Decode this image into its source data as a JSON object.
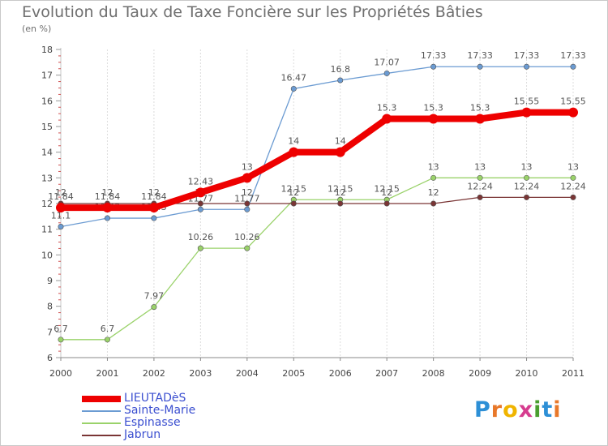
{
  "title": "Evolution du Taux de Taxe Foncière sur les Propriétés Bâties",
  "unit": "(en %)",
  "chart_data": {
    "type": "line",
    "title": "Evolution du Taux de Taxe Foncière sur les Propriétés Bâties",
    "ylabel": "(en %)",
    "xlabel": "",
    "x": [
      "2000",
      "2001",
      "2002",
      "2003",
      "2004",
      "2005",
      "2006",
      "2007",
      "2008",
      "2009",
      "2010",
      "2011"
    ],
    "ylim": [
      6,
      18
    ],
    "yticks": [
      6,
      7,
      8,
      9,
      10,
      11,
      12,
      13,
      14,
      15,
      16,
      17,
      18
    ],
    "grid": "vertical",
    "series": [
      {
        "name": "Sainte-Marie",
        "color": "#6b9bd2",
        "values": [
          11.1,
          11.43,
          11.43,
          11.77,
          11.77,
          16.47,
          16.8,
          17.07,
          17.33,
          17.33,
          17.33,
          17.33
        ],
        "labels": [
          "11.1",
          "11.43",
          "11.43",
          "11.77",
          "11.77",
          "16.47",
          "16.8",
          "17.07",
          "17.33",
          "17.33",
          "17.33",
          "17.33"
        ]
      },
      {
        "name": "Espinasse",
        "color": "#9ad26a",
        "values": [
          6.7,
          6.7,
          7.97,
          10.26,
          10.26,
          12.15,
          12.15,
          12.15,
          13,
          13,
          13,
          13
        ],
        "labels": [
          "6.7",
          "6.7",
          "7.97",
          "10.26",
          "10.26",
          "12.15",
          "12.15",
          "12.15",
          "13",
          "13",
          "13",
          "13"
        ]
      },
      {
        "name": "Jabrun",
        "color": "#7a3535",
        "values": [
          12,
          12,
          12,
          12,
          12,
          12,
          12,
          12,
          12,
          12.24,
          12.24,
          12.24
        ],
        "labels": [
          "12",
          "12",
          "12",
          "12",
          "12",
          "12",
          "12",
          "12",
          "12",
          "12.24",
          "12.24",
          "12.24"
        ]
      },
      {
        "name": "LIEUTADèS",
        "color": "#ee0000",
        "values": [
          11.84,
          11.84,
          11.84,
          12.43,
          13,
          14,
          14,
          15.3,
          15.3,
          15.3,
          15.55,
          15.55
        ],
        "labels": [
          "11.84",
          "11.84",
          "11.84",
          "12.43",
          "13",
          "14",
          "14",
          "15.3",
          "15.3",
          "15.3",
          "15.55",
          "15.55"
        ]
      }
    ]
  },
  "legend": [
    {
      "name": "LIEUTADèS",
      "color": "#ee0000",
      "thick": true
    },
    {
      "name": "Sainte-Marie",
      "color": "#6b9bd2",
      "thick": false
    },
    {
      "name": "Espinasse",
      "color": "#9ad26a",
      "thick": false
    },
    {
      "name": "Jabrun",
      "color": "#7a3535",
      "thick": false
    }
  ],
  "logo": {
    "letters": [
      "P",
      "r",
      "o",
      "x",
      "i",
      "t",
      "i"
    ],
    "colors": [
      "#2d8fd6",
      "#e8782a",
      "#f0b400",
      "#d63c8f",
      "#4a9e2f",
      "#2d8fd6",
      "#e8782a"
    ]
  }
}
